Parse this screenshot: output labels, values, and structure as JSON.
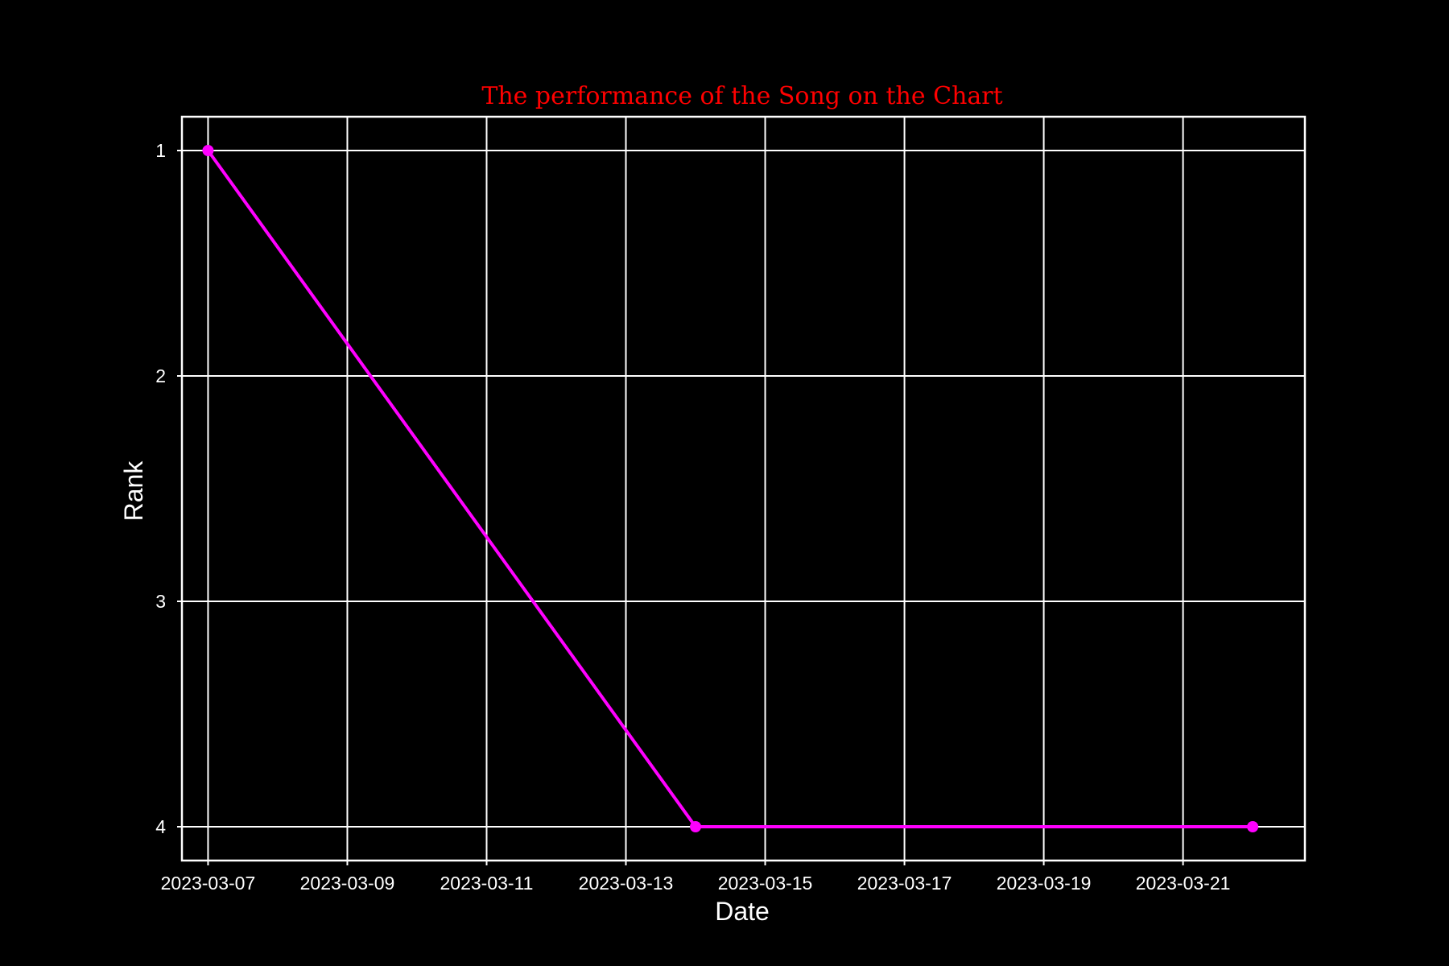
{
  "chart_data": {
    "type": "line",
    "title": "The performance of the Song on the Chart",
    "xlabel": "Date",
    "ylabel": "Rank",
    "x_axis": {
      "kind": "date",
      "range": [
        "2023-03-06T15:00",
        "2023-03-22T18:00"
      ],
      "ticks": [
        "2023-03-07",
        "2023-03-09",
        "2023-03-11",
        "2023-03-13",
        "2023-03-15",
        "2023-03-17",
        "2023-03-19",
        "2023-03-21"
      ]
    },
    "y_axis": {
      "inverted": true,
      "range": [
        0.85,
        4.15
      ],
      "ticks": [
        1,
        2,
        3,
        4
      ]
    },
    "grid": true,
    "series": [
      {
        "x": [
          "2023-03-07",
          "2023-03-14",
          "2023-03-22"
        ],
        "y": [
          1,
          4,
          4
        ],
        "marker": "circle"
      }
    ],
    "colors": {
      "background": "#000000",
      "axes": "#ffffff",
      "grid": "#ffffff",
      "line": "#ff00ff",
      "title": "#ff0000"
    }
  }
}
